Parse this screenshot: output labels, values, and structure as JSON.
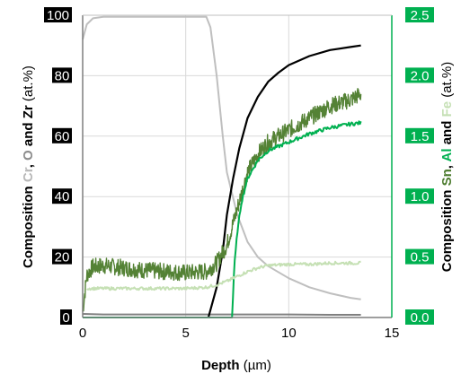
{
  "chart_data": {
    "type": "line",
    "xlabel": "Depth",
    "xlabel_unit": " (µm)",
    "x_ticks": [
      "0",
      "5",
      "10",
      "15"
    ],
    "xlim": [
      0,
      15
    ],
    "ylim_left": [
      0,
      100
    ],
    "ylim_right": [
      0,
      2.5
    ],
    "y_left_ticks": [
      "0",
      "20",
      "40",
      "60",
      "80",
      "100"
    ],
    "y_right_ticks": [
      "0.0",
      "0.5",
      "1.0",
      "1.5",
      "2.0",
      "2.5"
    ],
    "ylabel_left_parts": [
      {
        "text": "Composition ",
        "color": "#000000",
        "bold": true
      },
      {
        "text": "Cr",
        "color": "#b8b8b8",
        "bold": true
      },
      {
        "text": ", ",
        "color": "#000000",
        "bold": true
      },
      {
        "text": "O",
        "color": "#8c8c8c",
        "bold": true
      },
      {
        "text": " and ",
        "color": "#000000",
        "bold": true
      },
      {
        "text": "Zr",
        "color": "#000000",
        "bold": true
      },
      {
        "text": " (at.%)",
        "color": "#000000",
        "bold": false
      }
    ],
    "ylabel_right_parts": [
      {
        "text": "Composition ",
        "color": "#000000",
        "bold": true
      },
      {
        "text": "Sn",
        "color": "#4a7a2c",
        "bold": true
      },
      {
        "text": ", ",
        "color": "#000000",
        "bold": true
      },
      {
        "text": "Al",
        "color": "#00b050",
        "bold": true
      },
      {
        "text": " and ",
        "color": "#000000",
        "bold": true
      },
      {
        "text": "Fe",
        "color": "#c5e0b4",
        "bold": true
      },
      {
        "text": " (at.%)",
        "color": "#000000",
        "bold": false
      }
    ],
    "colors": {
      "left_axis": "#000000",
      "right_axis": "#00b050",
      "grid": "#d9d9d9"
    },
    "grid": true,
    "series": [
      {
        "name": "Cr",
        "axis": "left",
        "color": "#bfbfbf",
        "x": [
          0,
          0.2,
          0.5,
          1,
          2,
          3,
          4,
          5,
          6,
          6.2,
          6.5,
          6.8,
          7,
          7.5,
          8,
          8.5,
          9,
          10,
          11,
          12,
          13,
          13.5
        ],
        "y": [
          92,
          97,
          99,
          99.5,
          99.5,
          99.5,
          99.5,
          99.5,
          99.5,
          96,
          80,
          60,
          48,
          34,
          25,
          20,
          17,
          13,
          10,
          8,
          6.5,
          6
        ]
      },
      {
        "name": "O",
        "axis": "left",
        "color": "#808080",
        "x": [
          0,
          1,
          2,
          4,
          6,
          8,
          10,
          12,
          13.5
        ],
        "y": [
          1.2,
          1,
          1,
          1,
          1,
          1,
          1,
          0.9,
          0.9
        ]
      },
      {
        "name": "Zr",
        "axis": "left",
        "color": "#000000",
        "x": [
          6.1,
          6.5,
          6.8,
          7.0,
          7.3,
          7.6,
          8.0,
          8.5,
          9.0,
          9.5,
          10,
          11,
          12,
          13,
          13.5
        ],
        "y": [
          0,
          10,
          22,
          34,
          46,
          56,
          66,
          73,
          78,
          81,
          83.5,
          86.5,
          88.5,
          89.5,
          90
        ]
      },
      {
        "name": "Sn",
        "axis": "right",
        "color": "#548235",
        "x": [
          0,
          0.2,
          0.5,
          1,
          2,
          3,
          4,
          5,
          6,
          6.5,
          7,
          7.5,
          8,
          8.5,
          9,
          10,
          11,
          12,
          13,
          13.5
        ],
        "y": [
          0.05,
          0.35,
          0.42,
          0.43,
          0.41,
          0.39,
          0.38,
          0.37,
          0.38,
          0.45,
          0.6,
          0.9,
          1.2,
          1.35,
          1.45,
          1.55,
          1.65,
          1.75,
          1.8,
          1.85
        ]
      },
      {
        "name": "Al",
        "axis": "right",
        "color": "#00b050",
        "x": [
          0,
          7.25,
          7.35,
          7.5,
          7.7,
          8.0,
          8.5,
          9,
          10,
          11,
          12,
          13,
          13.5
        ],
        "y": [
          0,
          0,
          0.4,
          0.7,
          0.95,
          1.15,
          1.3,
          1.38,
          1.45,
          1.52,
          1.57,
          1.6,
          1.61
        ]
      },
      {
        "name": "Fe",
        "axis": "right",
        "color": "#c5e0b4",
        "x": [
          0.2,
          0.5,
          1,
          2,
          3,
          4,
          5,
          6,
          6.5,
          7,
          7.5,
          8,
          8.5,
          9,
          10,
          11,
          12,
          13,
          13.5
        ],
        "y": [
          0.24,
          0.24,
          0.24,
          0.24,
          0.24,
          0.24,
          0.24,
          0.25,
          0.27,
          0.3,
          0.34,
          0.38,
          0.41,
          0.43,
          0.44,
          0.44,
          0.45,
          0.45,
          0.45
        ]
      }
    ]
  }
}
